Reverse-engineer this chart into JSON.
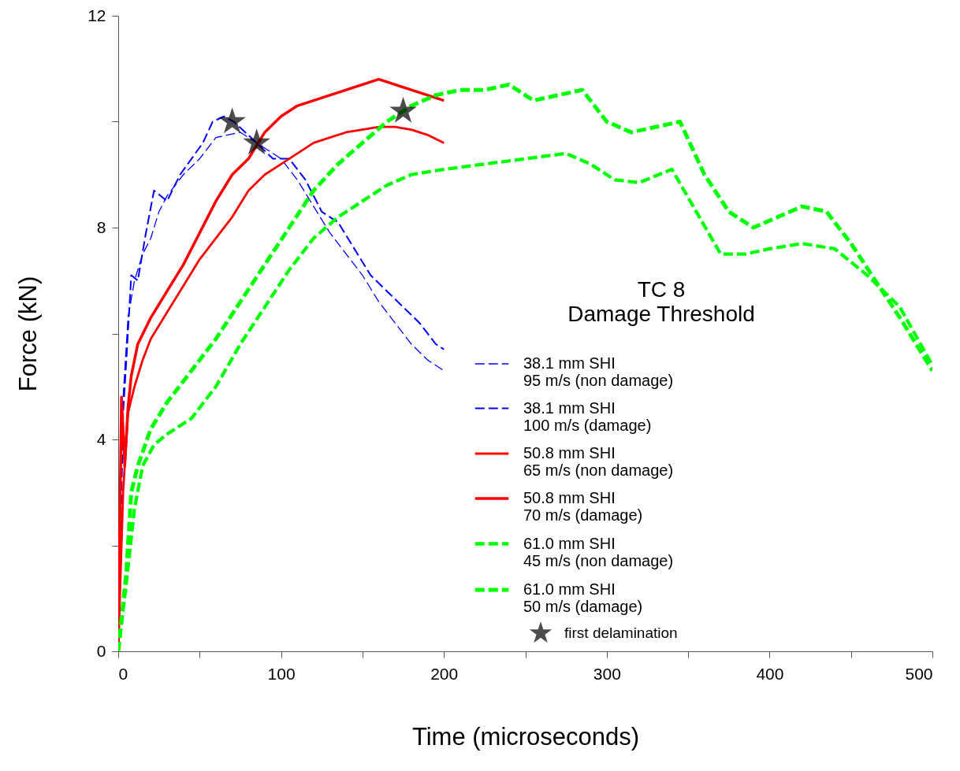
{
  "chart_data": {
    "type": "line",
    "title": "TC 8",
    "subtitle": "Damage Threshold",
    "xlabel": "Time (microseconds)",
    "ylabel": "Force (kN)",
    "xlim": [
      0,
      500
    ],
    "xticks": [
      0,
      {
        "value": 50,
        "label": null
      },
      100,
      {
        "value": 150,
        "label": null
      },
      200,
      {
        "value": 250,
        "label": null
      },
      300,
      {
        "value": 350,
        "label": null
      },
      400,
      {
        "value": 450,
        "label": null
      },
      500
    ],
    "ylim": [
      0,
      12
    ],
    "yticks": [
      0,
      {
        "value": 2,
        "label": null
      },
      4,
      {
        "value": 6,
        "label": null
      },
      8,
      {
        "value": 10,
        "label": null
      },
      12
    ],
    "grid": false,
    "legend": "bottom right",
    "marker": "none",
    "series": [
      {
        "name": "38.1 mm SHI\n95 m/s (non damage)",
        "color": "#0000ff",
        "line_style": "dashed",
        "x": [
          0,
          3,
          6,
          10,
          15,
          20,
          25,
          30,
          40,
          50,
          60,
          75,
          85,
          100,
          110,
          120,
          130,
          140,
          150,
          160,
          170,
          180,
          190,
          200
        ],
        "values": [
          0,
          4.8,
          6.3,
          7,
          7.5,
          7.8,
          8.3,
          8.6,
          9,
          9.3,
          9.7,
          9.8,
          9.6,
          9.3,
          8.9,
          8.4,
          7.9,
          7.5,
          7.1,
          6.6,
          6.2,
          5.8,
          5.5,
          5.3
        ]
      },
      {
        "name": "38.1 mm SHI\n100 m/s (damage)",
        "color": "#0000ff",
        "line_style": "dashed",
        "x": [
          0,
          3,
          5,
          8,
          12,
          17,
          22,
          30,
          38,
          45,
          52,
          58,
          65,
          71,
          78,
          85,
          95,
          105,
          115,
          125,
          135,
          145,
          155,
          165,
          175,
          185,
          195,
          200
        ],
        "values": [
          0,
          4.5,
          5.5,
          7.1,
          7,
          7.9,
          8.7,
          8.5,
          9,
          9.3,
          9.6,
          10,
          10.1,
          10,
          9.8,
          9.6,
          9.3,
          9.3,
          8.9,
          8.3,
          8.1,
          7.6,
          7.1,
          6.8,
          6.5,
          6.2,
          5.8,
          5.7
        ]
      },
      {
        "name": "50.8 mm SHI\n65 m/s (non damage)",
        "color": "#ff0000",
        "line_style": "solid",
        "x": [
          0,
          3,
          6,
          10,
          15,
          20,
          30,
          40,
          50,
          60,
          70,
          80,
          90,
          100,
          110,
          120,
          130,
          140,
          150,
          160,
          170,
          180,
          190,
          200
        ],
        "values": [
          0,
          3,
          4.5,
          5,
          5.5,
          5.9,
          6.4,
          6.9,
          7.4,
          7.8,
          8.2,
          8.7,
          9,
          9.2,
          9.4,
          9.6,
          9.7,
          9.8,
          9.85,
          9.9,
          9.9,
          9.85,
          9.75,
          9.6
        ]
      },
      {
        "name": "50.8 mm SHI\n70 m/s (damage)",
        "color": "#ff0000",
        "line_style": "solid",
        "x": [
          0,
          2,
          4,
          6,
          8,
          12,
          20,
          30,
          40,
          50,
          60,
          70,
          80,
          90,
          100,
          110,
          120,
          130,
          140,
          150,
          160,
          170,
          180,
          190,
          200
        ],
        "values": [
          0,
          4.8,
          3.5,
          4.6,
          5.2,
          5.8,
          6.3,
          6.8,
          7.3,
          7.9,
          8.5,
          9,
          9.3,
          9.8,
          10.1,
          10.3,
          10.4,
          10.5,
          10.6,
          10.7,
          10.8,
          10.7,
          10.6,
          10.5,
          10.4
        ]
      },
      {
        "name": "61.0 mm SHI\n45 m/s (non damage)",
        "color": "#00ff00",
        "line_style": "dashed",
        "x": [
          0,
          5,
          10,
          15,
          22,
          30,
          45,
          60,
          75,
          90,
          105,
          120,
          135,
          150,
          165,
          180,
          200,
          225,
          250,
          275,
          290,
          305,
          320,
          340,
          355,
          370,
          385,
          400,
          420,
          440,
          460,
          480,
          500
        ],
        "values": [
          0,
          1.3,
          2.7,
          3.5,
          3.9,
          4.1,
          4.4,
          5,
          5.8,
          6.5,
          7.2,
          7.8,
          8.2,
          8.5,
          8.8,
          9,
          9.1,
          9.2,
          9.3,
          9.4,
          9.2,
          8.9,
          8.85,
          9.1,
          8.3,
          7.5,
          7.5,
          7.6,
          7.7,
          7.6,
          7.1,
          6.5,
          5.4
        ]
      },
      {
        "name": "61.0 mm SHI\n50 m/s (damage)",
        "color": "#00ff00",
        "line_style": "dashed",
        "x": [
          0,
          5,
          8,
          12,
          20,
          30,
          45,
          60,
          75,
          90,
          105,
          120,
          135,
          150,
          165,
          180,
          195,
          210,
          225,
          240,
          255,
          270,
          285,
          300,
          315,
          330,
          345,
          360,
          375,
          390,
          405,
          420,
          435,
          450,
          465,
          480,
          500
        ],
        "values": [
          0,
          1.5,
          3,
          3.5,
          4.2,
          4.7,
          5.3,
          5.9,
          6.6,
          7.3,
          8,
          8.7,
          9.2,
          9.6,
          10,
          10.3,
          10.5,
          10.6,
          10.6,
          10.7,
          10.4,
          10.5,
          10.6,
          10,
          9.8,
          9.9,
          10,
          9,
          8.3,
          8,
          8.2,
          8.4,
          8.3,
          7.7,
          7,
          6.3,
          5.3
        ]
      },
      {
        "name": "first delamination",
        "type": "scatter",
        "marker": "star",
        "color": "#000000",
        "x": [
          70,
          85,
          175
        ],
        "values": [
          10,
          9.6,
          10.2
        ]
      }
    ]
  }
}
